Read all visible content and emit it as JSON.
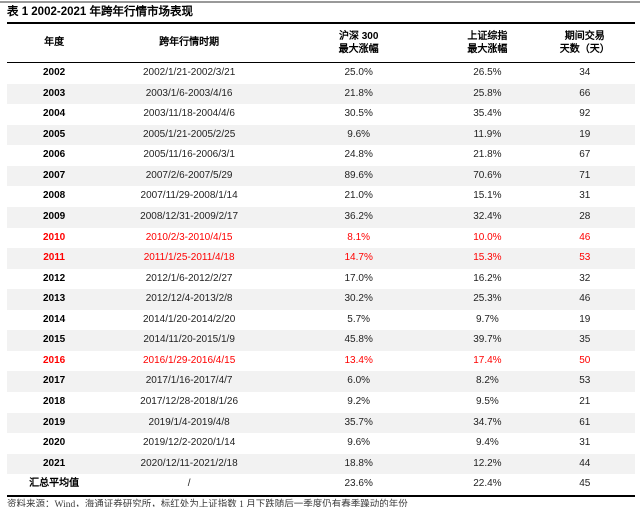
{
  "page": {
    "title": "表 1 2002-2021 年跨年行情市场表现",
    "source_note": "资料来源：Wind，海通证券研究所，标红处为上证指数 1 月下跌随后一季度仍有春季躁动的年份"
  },
  "colors": {
    "highlight_red": "#ff0000",
    "row_alt_bg": "#f2f2f2",
    "rule_black": "#000000",
    "top_rule_gray": "#999999"
  },
  "chart_data": {
    "type": "table",
    "title": "表 1 2002-2021 年跨年行情市场表现",
    "columns": [
      "年度",
      "跨年行情时期",
      "沪深 300 最大涨幅",
      "上证综指 最大涨幅",
      "期间交易天数（天）"
    ],
    "column_keys": [
      "year",
      "period",
      "hs300",
      "sse",
      "days"
    ],
    "header_lines": [
      [
        "年度"
      ],
      [
        "跨年行情时期"
      ],
      [
        "沪深 300",
        "最大涨幅"
      ],
      [
        "上证综指",
        "最大涨幅"
      ],
      [
        "期间交易",
        "天数（天）"
      ]
    ],
    "highlight_meaning": "标红处为上证指数 1 月下跌随后一季度仍有春季躁动的年份",
    "rows": [
      {
        "year": "2002",
        "period": "2002/1/21-2002/3/21",
        "hs300_max_gain": "25.0%",
        "szzz_max_gain": "26.5%",
        "trading_days": "34",
        "highlight": false,
        "summary": false
      },
      {
        "year": "2003",
        "period": "2003/1/6-2003/4/16",
        "hs300_max_gain": "21.8%",
        "szzz_max_gain": "25.8%",
        "trading_days": "66",
        "highlight": false,
        "summary": false
      },
      {
        "year": "2004",
        "period": "2003/11/18-2004/4/6",
        "hs300_max_gain": "30.5%",
        "szzz_max_gain": "35.4%",
        "trading_days": "92",
        "highlight": false,
        "summary": false
      },
      {
        "year": "2005",
        "period": "2005/1/21-2005/2/25",
        "hs300_max_gain": "9.6%",
        "szzz_max_gain": "11.9%",
        "trading_days": "19",
        "highlight": false,
        "summary": false
      },
      {
        "year": "2006",
        "period": "2005/11/16-2006/3/1",
        "hs300_max_gain": "24.8%",
        "szzz_max_gain": "21.8%",
        "trading_days": "67",
        "highlight": false,
        "summary": false
      },
      {
        "year": "2007",
        "period": "2007/2/6-2007/5/29",
        "hs300_max_gain": "89.6%",
        "szzz_max_gain": "70.6%",
        "trading_days": "71",
        "highlight": false,
        "summary": false
      },
      {
        "year": "2008",
        "period": "2007/11/29-2008/1/14",
        "hs300_max_gain": "21.0%",
        "szzz_max_gain": "15.1%",
        "trading_days": "31",
        "highlight": false,
        "summary": false
      },
      {
        "year": "2009",
        "period": "2008/12/31-2009/2/17",
        "hs300_max_gain": "36.2%",
        "szzz_max_gain": "32.4%",
        "trading_days": "28",
        "highlight": false,
        "summary": false
      },
      {
        "year": "2010",
        "period": "2010/2/3-2010/4/15",
        "hs300_max_gain": "8.1%",
        "szzz_max_gain": "10.0%",
        "trading_days": "46",
        "highlight": true,
        "summary": false
      },
      {
        "year": "2011",
        "period": "2011/1/25-2011/4/18",
        "hs300_max_gain": "14.7%",
        "szzz_max_gain": "15.3%",
        "trading_days": "53",
        "highlight": true,
        "summary": false
      },
      {
        "year": "2012",
        "period": "2012/1/6-2012/2/27",
        "hs300_max_gain": "17.0%",
        "szzz_max_gain": "16.2%",
        "trading_days": "32",
        "highlight": false,
        "summary": false
      },
      {
        "year": "2013",
        "period": "2012/12/4-2013/2/8",
        "hs300_max_gain": "30.2%",
        "szzz_max_gain": "25.3%",
        "trading_days": "46",
        "highlight": false,
        "summary": false
      },
      {
        "year": "2014",
        "period": "2014/1/20-2014/2/20",
        "hs300_max_gain": "5.7%",
        "szzz_max_gain": "9.7%",
        "trading_days": "19",
        "highlight": false,
        "summary": false
      },
      {
        "year": "2015",
        "period": "2014/11/20-2015/1/9",
        "hs300_max_gain": "45.8%",
        "szzz_max_gain": "39.7%",
        "trading_days": "35",
        "highlight": false,
        "summary": false
      },
      {
        "year": "2016",
        "period": "2016/1/29-2016/4/15",
        "hs300_max_gain": "13.4%",
        "szzz_max_gain": "17.4%",
        "trading_days": "50",
        "highlight": true,
        "summary": false
      },
      {
        "year": "2017",
        "period": "2017/1/16-2017/4/7",
        "hs300_max_gain": "6.0%",
        "szzz_max_gain": "8.2%",
        "trading_days": "53",
        "highlight": false,
        "summary": false
      },
      {
        "year": "2018",
        "period": "2017/12/28-2018/1/26",
        "hs300_max_gain": "9.2%",
        "szzz_max_gain": "9.5%",
        "trading_days": "21",
        "highlight": false,
        "summary": false
      },
      {
        "year": "2019",
        "period": "2019/1/4-2019/4/8",
        "hs300_max_gain": "35.7%",
        "szzz_max_gain": "34.7%",
        "trading_days": "61",
        "highlight": false,
        "summary": false
      },
      {
        "year": "2020",
        "period": "2019/12/2-2020/1/14",
        "hs300_max_gain": "9.6%",
        "szzz_max_gain": "9.4%",
        "trading_days": "31",
        "highlight": false,
        "summary": false
      },
      {
        "year": "2021",
        "period": "2020/12/11-2021/2/18",
        "hs300_max_gain": "18.8%",
        "szzz_max_gain": "12.2%",
        "trading_days": "44",
        "highlight": false,
        "summary": false
      },
      {
        "year": "汇总平均值",
        "period": "/",
        "hs300_max_gain": "23.6%",
        "szzz_max_gain": "22.4%",
        "trading_days": "45",
        "highlight": false,
        "summary": true
      }
    ]
  }
}
